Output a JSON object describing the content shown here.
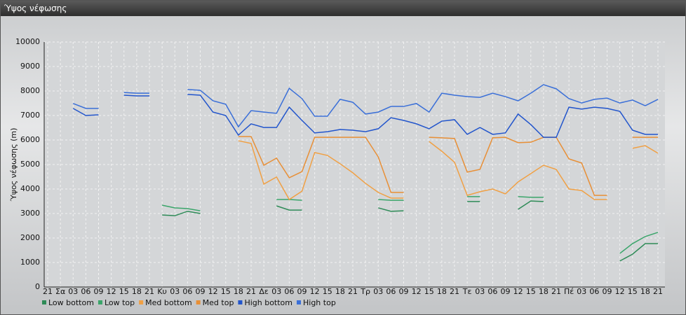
{
  "chart_data": {
    "type": "line",
    "title": "Ύψος νέφωσης",
    "ylabel": "Ύψος νέφωσης (m)",
    "categories": [
      "21",
      "Σα",
      "03",
      "06",
      "09",
      "12",
      "15",
      "18",
      "21",
      "Κυ",
      "03",
      "06",
      "09",
      "12",
      "15",
      "18",
      "21",
      "Δε",
      "03",
      "06",
      "09",
      "12",
      "15",
      "18",
      "21",
      "Τρ",
      "03",
      "06",
      "09",
      "12",
      "15",
      "18",
      "21",
      "Τε",
      "03",
      "06",
      "09",
      "12",
      "15",
      "18",
      "21",
      "Πέ",
      "03",
      "06",
      "09",
      "12",
      "15",
      "18",
      "21"
    ],
    "ylim": [
      0,
      10000
    ],
    "yticks": [
      0,
      1000,
      2000,
      3000,
      4000,
      5000,
      6000,
      7000,
      8000,
      9000,
      10000
    ],
    "grid": true,
    "series": [
      {
        "name": "Low bottom",
        "color": "#2e8b57",
        "values": [
          null,
          null,
          null,
          null,
          null,
          null,
          null,
          null,
          null,
          2940,
          2910,
          3090,
          3000,
          null,
          null,
          null,
          null,
          null,
          3310,
          3140,
          3140,
          null,
          null,
          null,
          null,
          null,
          3230,
          3090,
          3110,
          null,
          null,
          null,
          null,
          3490,
          3490,
          null,
          null,
          3170,
          3510,
          3490,
          null,
          null,
          null,
          null,
          null,
          1060,
          1340,
          1770,
          1770
        ]
      },
      {
        "name": "Low top",
        "color": "#3aa56a",
        "values": [
          null,
          null,
          null,
          null,
          null,
          null,
          null,
          null,
          null,
          3340,
          3230,
          3200,
          3110,
          null,
          null,
          null,
          null,
          null,
          3570,
          3570,
          3540,
          null,
          null,
          null,
          null,
          null,
          3570,
          3540,
          3540,
          null,
          null,
          null,
          null,
          3690,
          3690,
          null,
          null,
          3690,
          3660,
          3660,
          null,
          null,
          null,
          null,
          null,
          1370,
          1770,
          2060,
          2230
        ]
      },
      {
        "name": "Med bottom",
        "color": "#f0a044",
        "values": [
          null,
          null,
          null,
          null,
          null,
          null,
          null,
          null,
          null,
          null,
          null,
          null,
          null,
          null,
          null,
          5970,
          5860,
          4200,
          4490,
          3570,
          3910,
          5490,
          5370,
          5030,
          4660,
          4230,
          3860,
          3630,
          3630,
          null,
          5940,
          5540,
          5090,
          3740,
          3890,
          4000,
          3800,
          4290,
          4630,
          4970,
          4800,
          4000,
          3940,
          3570,
          3570,
          null,
          5660,
          5770,
          5460
        ]
      },
      {
        "name": "Med top",
        "color": "#e88f36",
        "values": [
          null,
          null,
          null,
          null,
          null,
          null,
          null,
          null,
          null,
          null,
          null,
          null,
          null,
          null,
          null,
          6140,
          6140,
          4970,
          5260,
          4460,
          4710,
          6110,
          6110,
          6110,
          6110,
          6110,
          5310,
          3860,
          3860,
          null,
          6110,
          6090,
          6060,
          4690,
          4800,
          6090,
          6110,
          5890,
          5910,
          6110,
          6110,
          5230,
          5060,
          3740,
          3740,
          null,
          6110,
          6110,
          6110
        ]
      },
      {
        "name": "High bottom",
        "color": "#2255cc",
        "values": [
          null,
          null,
          7290,
          7000,
          7030,
          null,
          7830,
          7800,
          7800,
          null,
          null,
          7860,
          7830,
          7140,
          7000,
          6200,
          6660,
          6510,
          6510,
          7340,
          6800,
          6290,
          6340,
          6430,
          6400,
          6340,
          6460,
          6910,
          6800,
          6660,
          6460,
          6770,
          6830,
          6230,
          6510,
          6230,
          6290,
          7060,
          6630,
          6110,
          6110,
          7340,
          7260,
          7340,
          7290,
          7170,
          6400,
          6230,
          6230
        ]
      },
      {
        "name": "High top",
        "color": "#3a6fd8",
        "values": [
          null,
          null,
          7490,
          7290,
          7290,
          null,
          7940,
          7910,
          7910,
          null,
          null,
          8060,
          8030,
          7600,
          7460,
          6540,
          7200,
          7140,
          7090,
          8110,
          7690,
          6970,
          6970,
          7660,
          7540,
          7060,
          7140,
          7370,
          7370,
          7490,
          7140,
          7910,
          7830,
          7770,
          7740,
          7910,
          7770,
          7600,
          7910,
          8260,
          8090,
          7690,
          7510,
          7660,
          7710,
          7510,
          7630,
          7400,
          7660
        ]
      }
    ]
  }
}
